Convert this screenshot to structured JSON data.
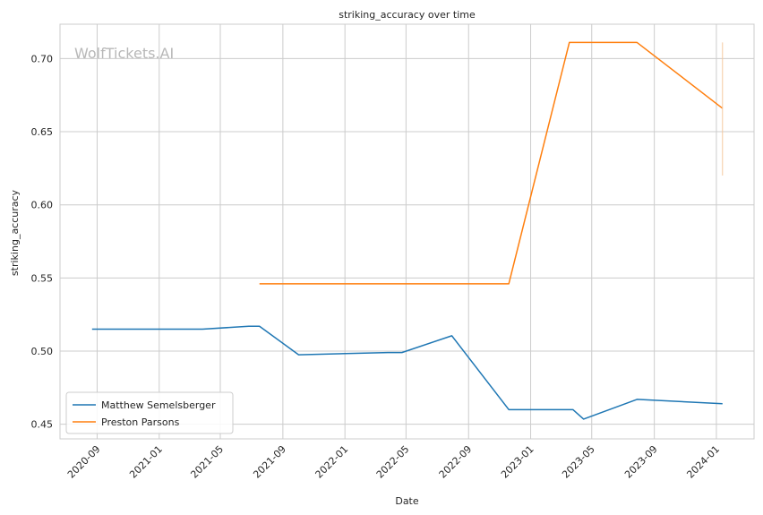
{
  "watermark": "WolfTickets.AI",
  "chart_data": {
    "type": "line",
    "title": "striking_accuracy over time",
    "xlabel": "Date",
    "ylabel": "striking_accuracy",
    "x_type": "date",
    "xlim": [
      "2020-06-20",
      "2024-03-15"
    ],
    "ylim": [
      0.44,
      0.7235
    ],
    "grid": true,
    "legend_position": "lower-left",
    "x_ticks": [
      "2020-09-01",
      "2021-01-01",
      "2021-05-01",
      "2021-09-01",
      "2022-01-01",
      "2022-05-01",
      "2022-09-01",
      "2023-01-01",
      "2023-05-01",
      "2023-09-01",
      "2024-01-01"
    ],
    "x_tick_labels": [
      "2020-09",
      "2021-01",
      "2021-05",
      "2021-09",
      "2022-01",
      "2022-05",
      "2022-09",
      "2023-01",
      "2023-05",
      "2023-09",
      "2024-01"
    ],
    "y_ticks": [
      0.45,
      0.5,
      0.55,
      0.6,
      0.65,
      0.7
    ],
    "y_tick_labels": [
      "0.45",
      "0.50",
      "0.55",
      "0.60",
      "0.65",
      "0.70"
    ],
    "series": [
      {
        "name": "Matthew Semelsberger",
        "color": "#1f77b4",
        "points": [
          {
            "x": "2020-08-22",
            "y": 0.515
          },
          {
            "x": "2021-03-27",
            "y": 0.515
          },
          {
            "x": "2021-06-26",
            "y": 0.517
          },
          {
            "x": "2021-07-17",
            "y": 0.517
          },
          {
            "x": "2021-10-02",
            "y": 0.4975
          },
          {
            "x": "2022-03-26",
            "y": 0.499
          },
          {
            "x": "2022-04-23",
            "y": 0.499
          },
          {
            "x": "2022-07-30",
            "y": 0.5105
          },
          {
            "x": "2022-11-19",
            "y": 0.46
          },
          {
            "x": "2023-03-25",
            "y": 0.46
          },
          {
            "x": "2023-04-15",
            "y": 0.4535
          },
          {
            "x": "2023-07-29",
            "y": 0.467
          },
          {
            "x": "2024-01-13",
            "y": 0.464
          }
        ]
      },
      {
        "name": "Preston Parsons",
        "color": "#ff7f0e",
        "points": [
          {
            "x": "2021-07-17",
            "y": 0.546
          },
          {
            "x": "2022-11-19",
            "y": 0.546
          },
          {
            "x": "2023-03-18",
            "y": 0.711
          },
          {
            "x": "2023-07-29",
            "y": 0.711
          },
          {
            "x": "2024-01-13",
            "y": 0.666
          }
        ]
      }
    ],
    "annotations": [
      {
        "type": "vertical-segment",
        "x": "2024-01-13",
        "y_from": 0.62,
        "y_to": 0.711,
        "color": "#f5c9a0"
      }
    ]
  }
}
